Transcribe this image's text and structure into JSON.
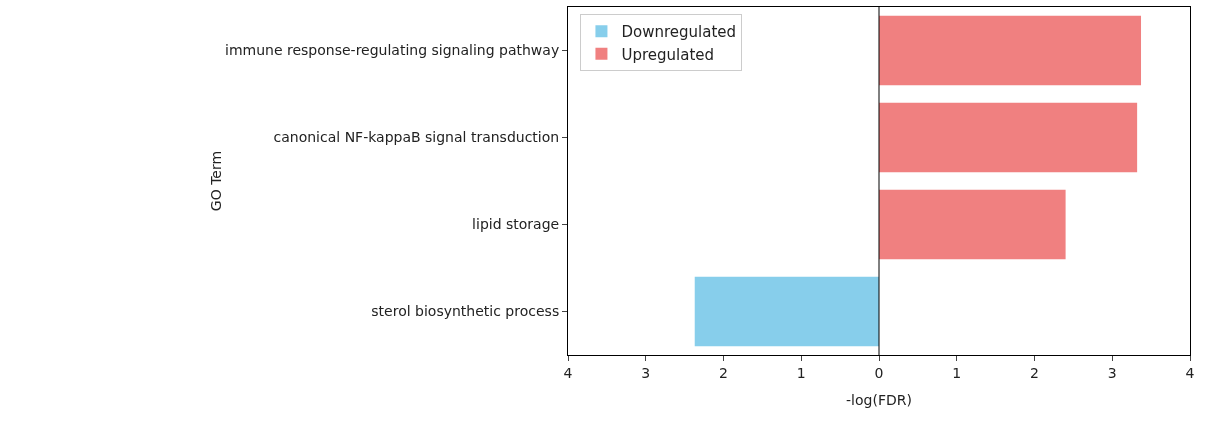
{
  "chart_data": {
    "type": "bar",
    "orientation": "horizontal",
    "xlabel": "-log(FDR)",
    "ylabel": "GO Term",
    "categories": [
      "immune response-regulating signaling pathway",
      "canonical NF-kappaB signal transduction",
      "lipid storage",
      "sterol biosynthetic process"
    ],
    "series": [
      {
        "name": "Downregulated",
        "color": "#87ceeb",
        "values": [
          null,
          null,
          null,
          -2.37
        ]
      },
      {
        "name": "Upregulated",
        "color": "#f08080",
        "values": [
          3.37,
          3.32,
          2.4,
          null
        ]
      }
    ],
    "xlim": [
      -4,
      4
    ],
    "xticks": [
      {
        "value": -4,
        "label": "4"
      },
      {
        "value": -3,
        "label": "3"
      },
      {
        "value": -2,
        "label": "2"
      },
      {
        "value": -1,
        "label": "1"
      },
      0,
      1,
      2,
      3,
      4
    ],
    "ref_lines": [
      {
        "axis": "x",
        "value": 0,
        "color": "#000000",
        "line_style": "solid"
      }
    ],
    "legend": "top left"
  }
}
